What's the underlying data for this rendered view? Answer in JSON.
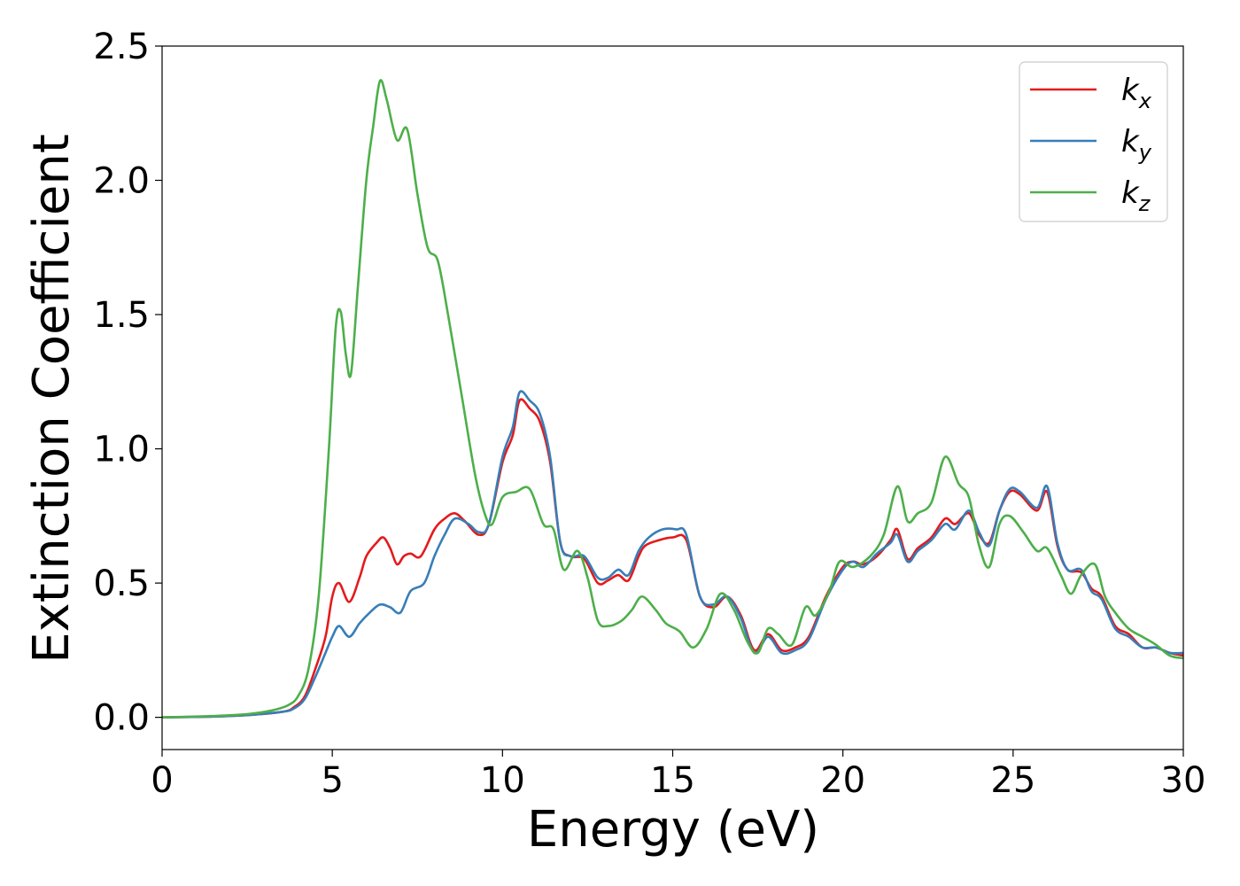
{
  "chart_data": {
    "type": "line",
    "title": "",
    "xlabel": "Energy (eV)",
    "ylabel": "Extinction Coefficient",
    "xlim": [
      0,
      30
    ],
    "ylim": [
      -0.12,
      2.5
    ],
    "xticks": [
      0,
      5,
      10,
      15,
      20,
      25,
      30
    ],
    "yticks": [
      0.0,
      0.5,
      1.0,
      1.5,
      2.0,
      2.5
    ],
    "xtick_labels": [
      "0",
      "5",
      "10",
      "15",
      "20",
      "25",
      "30"
    ],
    "ytick_labels": [
      "0.0",
      "0.5",
      "1.0",
      "1.5",
      "2.0",
      "2.5"
    ],
    "grid": false,
    "legend_position": "top-right",
    "series": [
      {
        "name": "k",
        "subscript": "x",
        "color": "#e41a1c",
        "points": [
          [
            0,
            0.0
          ],
          [
            2,
            0.005
          ],
          [
            3.5,
            0.02
          ],
          [
            3.9,
            0.04
          ],
          [
            4.2,
            0.08
          ],
          [
            4.5,
            0.18
          ],
          [
            4.8,
            0.3
          ],
          [
            5.0,
            0.45
          ],
          [
            5.2,
            0.5
          ],
          [
            5.5,
            0.43
          ],
          [
            5.8,
            0.52
          ],
          [
            6.0,
            0.6
          ],
          [
            6.3,
            0.65
          ],
          [
            6.5,
            0.67
          ],
          [
            6.7,
            0.63
          ],
          [
            6.9,
            0.57
          ],
          [
            7.1,
            0.6
          ],
          [
            7.3,
            0.61
          ],
          [
            7.6,
            0.6
          ],
          [
            8.0,
            0.7
          ],
          [
            8.3,
            0.74
          ],
          [
            8.6,
            0.76
          ],
          [
            8.9,
            0.73
          ],
          [
            9.3,
            0.68
          ],
          [
            9.6,
            0.72
          ],
          [
            10.0,
            0.95
          ],
          [
            10.3,
            1.05
          ],
          [
            10.5,
            1.18
          ],
          [
            10.8,
            1.15
          ],
          [
            11.1,
            1.1
          ],
          [
            11.4,
            0.95
          ],
          [
            11.7,
            0.65
          ],
          [
            12.0,
            0.6
          ],
          [
            12.4,
            0.59
          ],
          [
            12.8,
            0.5
          ],
          [
            13.1,
            0.51
          ],
          [
            13.4,
            0.53
          ],
          [
            13.7,
            0.51
          ],
          [
            14.0,
            0.6
          ],
          [
            14.2,
            0.64
          ],
          [
            14.6,
            0.66
          ],
          [
            15.0,
            0.67
          ],
          [
            15.4,
            0.66
          ],
          [
            15.8,
            0.45
          ],
          [
            16.2,
            0.41
          ],
          [
            16.6,
            0.45
          ],
          [
            17.0,
            0.38
          ],
          [
            17.4,
            0.25
          ],
          [
            17.8,
            0.31
          ],
          [
            18.2,
            0.25
          ],
          [
            18.6,
            0.26
          ],
          [
            19.0,
            0.3
          ],
          [
            19.5,
            0.45
          ],
          [
            20.0,
            0.56
          ],
          [
            20.3,
            0.58
          ],
          [
            20.6,
            0.57
          ],
          [
            21.0,
            0.6
          ],
          [
            21.4,
            0.66
          ],
          [
            21.6,
            0.7
          ],
          [
            21.9,
            0.59
          ],
          [
            22.2,
            0.63
          ],
          [
            22.6,
            0.67
          ],
          [
            23.0,
            0.74
          ],
          [
            23.3,
            0.72
          ],
          [
            23.7,
            0.76
          ],
          [
            24.0,
            0.68
          ],
          [
            24.3,
            0.65
          ],
          [
            24.6,
            0.77
          ],
          [
            24.9,
            0.84
          ],
          [
            25.2,
            0.83
          ],
          [
            25.7,
            0.77
          ],
          [
            26.0,
            0.84
          ],
          [
            26.3,
            0.64
          ],
          [
            26.6,
            0.55
          ],
          [
            27.0,
            0.54
          ],
          [
            27.3,
            0.48
          ],
          [
            27.6,
            0.45
          ],
          [
            28.0,
            0.34
          ],
          [
            28.4,
            0.31
          ],
          [
            28.8,
            0.26
          ],
          [
            29.2,
            0.26
          ],
          [
            29.6,
            0.24
          ],
          [
            30,
            0.23
          ]
        ]
      },
      {
        "name": "k",
        "subscript": "y",
        "color": "#377eb8",
        "points": [
          [
            0,
            0.0
          ],
          [
            2,
            0.005
          ],
          [
            3.5,
            0.02
          ],
          [
            3.9,
            0.035
          ],
          [
            4.2,
            0.07
          ],
          [
            4.5,
            0.15
          ],
          [
            4.8,
            0.24
          ],
          [
            5.0,
            0.3
          ],
          [
            5.2,
            0.34
          ],
          [
            5.5,
            0.3
          ],
          [
            5.8,
            0.35
          ],
          [
            6.1,
            0.39
          ],
          [
            6.4,
            0.42
          ],
          [
            6.7,
            0.41
          ],
          [
            7.0,
            0.39
          ],
          [
            7.3,
            0.47
          ],
          [
            7.7,
            0.5
          ],
          [
            8.0,
            0.6
          ],
          [
            8.3,
            0.68
          ],
          [
            8.6,
            0.74
          ],
          [
            9.0,
            0.72
          ],
          [
            9.3,
            0.69
          ],
          [
            9.6,
            0.72
          ],
          [
            10.0,
            0.97
          ],
          [
            10.3,
            1.08
          ],
          [
            10.5,
            1.21
          ],
          [
            10.8,
            1.18
          ],
          [
            11.1,
            1.13
          ],
          [
            11.4,
            0.97
          ],
          [
            11.7,
            0.65
          ],
          [
            12.0,
            0.6
          ],
          [
            12.4,
            0.6
          ],
          [
            12.8,
            0.52
          ],
          [
            13.1,
            0.52
          ],
          [
            13.4,
            0.55
          ],
          [
            13.7,
            0.53
          ],
          [
            14.0,
            0.62
          ],
          [
            14.3,
            0.67
          ],
          [
            14.7,
            0.7
          ],
          [
            15.1,
            0.7
          ],
          [
            15.4,
            0.68
          ],
          [
            15.8,
            0.45
          ],
          [
            16.2,
            0.42
          ],
          [
            16.6,
            0.45
          ],
          [
            17.0,
            0.37
          ],
          [
            17.4,
            0.24
          ],
          [
            17.8,
            0.3
          ],
          [
            18.2,
            0.24
          ],
          [
            18.6,
            0.25
          ],
          [
            19.0,
            0.29
          ],
          [
            19.5,
            0.44
          ],
          [
            20.0,
            0.55
          ],
          [
            20.3,
            0.58
          ],
          [
            20.6,
            0.56
          ],
          [
            21.0,
            0.61
          ],
          [
            21.4,
            0.65
          ],
          [
            21.6,
            0.68
          ],
          [
            21.9,
            0.58
          ],
          [
            22.2,
            0.62
          ],
          [
            22.6,
            0.66
          ],
          [
            23.0,
            0.72
          ],
          [
            23.3,
            0.7
          ],
          [
            23.7,
            0.77
          ],
          [
            24.0,
            0.69
          ],
          [
            24.3,
            0.64
          ],
          [
            24.6,
            0.77
          ],
          [
            24.9,
            0.85
          ],
          [
            25.2,
            0.84
          ],
          [
            25.7,
            0.78
          ],
          [
            26.0,
            0.86
          ],
          [
            26.3,
            0.65
          ],
          [
            26.6,
            0.55
          ],
          [
            27.0,
            0.55
          ],
          [
            27.3,
            0.47
          ],
          [
            27.6,
            0.44
          ],
          [
            28.0,
            0.33
          ],
          [
            28.4,
            0.3
          ],
          [
            28.8,
            0.26
          ],
          [
            29.2,
            0.26
          ],
          [
            29.6,
            0.24
          ],
          [
            30,
            0.24
          ]
        ]
      },
      {
        "name": "k",
        "subscript": "z",
        "color": "#4daf4a",
        "points": [
          [
            0,
            0.0
          ],
          [
            1.5,
            0.005
          ],
          [
            2.5,
            0.012
          ],
          [
            3.2,
            0.025
          ],
          [
            3.7,
            0.045
          ],
          [
            4.0,
            0.08
          ],
          [
            4.3,
            0.18
          ],
          [
            4.6,
            0.45
          ],
          [
            4.9,
            1.0
          ],
          [
            5.1,
            1.45
          ],
          [
            5.25,
            1.51
          ],
          [
            5.4,
            1.35
          ],
          [
            5.55,
            1.28
          ],
          [
            5.75,
            1.6
          ],
          [
            6.0,
            2.0
          ],
          [
            6.2,
            2.2
          ],
          [
            6.4,
            2.37
          ],
          [
            6.6,
            2.3
          ],
          [
            6.9,
            2.15
          ],
          [
            7.2,
            2.19
          ],
          [
            7.5,
            1.95
          ],
          [
            7.8,
            1.75
          ],
          [
            8.1,
            1.7
          ],
          [
            8.4,
            1.5
          ],
          [
            8.8,
            1.2
          ],
          [
            9.2,
            0.9
          ],
          [
            9.5,
            0.75
          ],
          [
            9.7,
            0.72
          ],
          [
            10.0,
            0.82
          ],
          [
            10.4,
            0.84
          ],
          [
            10.8,
            0.85
          ],
          [
            11.2,
            0.72
          ],
          [
            11.5,
            0.7
          ],
          [
            11.8,
            0.55
          ],
          [
            12.2,
            0.62
          ],
          [
            12.5,
            0.52
          ],
          [
            12.8,
            0.36
          ],
          [
            13.1,
            0.34
          ],
          [
            13.5,
            0.36
          ],
          [
            13.8,
            0.4
          ],
          [
            14.1,
            0.45
          ],
          [
            14.5,
            0.4
          ],
          [
            14.8,
            0.35
          ],
          [
            15.2,
            0.32
          ],
          [
            15.6,
            0.26
          ],
          [
            16.0,
            0.33
          ],
          [
            16.4,
            0.46
          ],
          [
            16.8,
            0.4
          ],
          [
            17.2,
            0.28
          ],
          [
            17.5,
            0.24
          ],
          [
            17.8,
            0.33
          ],
          [
            18.1,
            0.31
          ],
          [
            18.5,
            0.27
          ],
          [
            18.9,
            0.41
          ],
          [
            19.2,
            0.38
          ],
          [
            19.6,
            0.47
          ],
          [
            19.9,
            0.58
          ],
          [
            20.3,
            0.56
          ],
          [
            20.8,
            0.6
          ],
          [
            21.2,
            0.68
          ],
          [
            21.6,
            0.86
          ],
          [
            21.9,
            0.73
          ],
          [
            22.2,
            0.76
          ],
          [
            22.6,
            0.8
          ],
          [
            23.0,
            0.97
          ],
          [
            23.4,
            0.87
          ],
          [
            23.7,
            0.82
          ],
          [
            24.0,
            0.64
          ],
          [
            24.3,
            0.56
          ],
          [
            24.6,
            0.72
          ],
          [
            24.9,
            0.75
          ],
          [
            25.3,
            0.69
          ],
          [
            25.7,
            0.62
          ],
          [
            26.0,
            0.63
          ],
          [
            26.4,
            0.53
          ],
          [
            26.7,
            0.46
          ],
          [
            27.0,
            0.53
          ],
          [
            27.4,
            0.57
          ],
          [
            27.7,
            0.45
          ],
          [
            28.0,
            0.39
          ],
          [
            28.4,
            0.33
          ],
          [
            28.8,
            0.3
          ],
          [
            29.2,
            0.27
          ],
          [
            29.6,
            0.23
          ],
          [
            30,
            0.22
          ]
        ]
      }
    ]
  }
}
